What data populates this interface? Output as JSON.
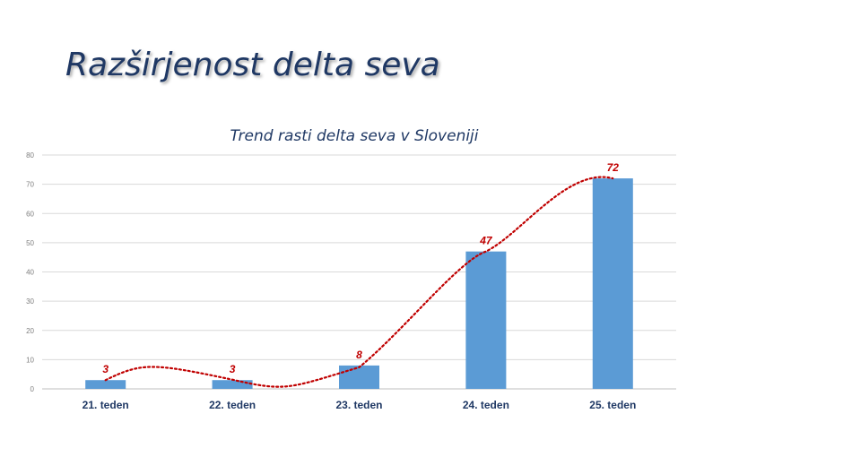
{
  "slide": {
    "title": "Razširjenost delta seva"
  },
  "colors": {
    "bar": "#5b9bd5",
    "trendline": "#c00000",
    "title": "#1f3864",
    "grid": "#d9d9d9"
  },
  "chart_data": {
    "type": "bar",
    "title": "Trend rasti delta seva v Sloveniji",
    "categories": [
      "21. teden",
      "22. teden",
      "23. teden",
      "24. teden",
      "25. teden"
    ],
    "values": [
      3,
      3,
      8,
      47,
      72
    ],
    "ylim": [
      0,
      80
    ],
    "yticks": [
      0,
      10,
      20,
      30,
      40,
      50,
      60,
      70,
      80
    ],
    "grid": true,
    "legend": "none",
    "data_labels": true,
    "trendline": "dotted polynomial"
  }
}
